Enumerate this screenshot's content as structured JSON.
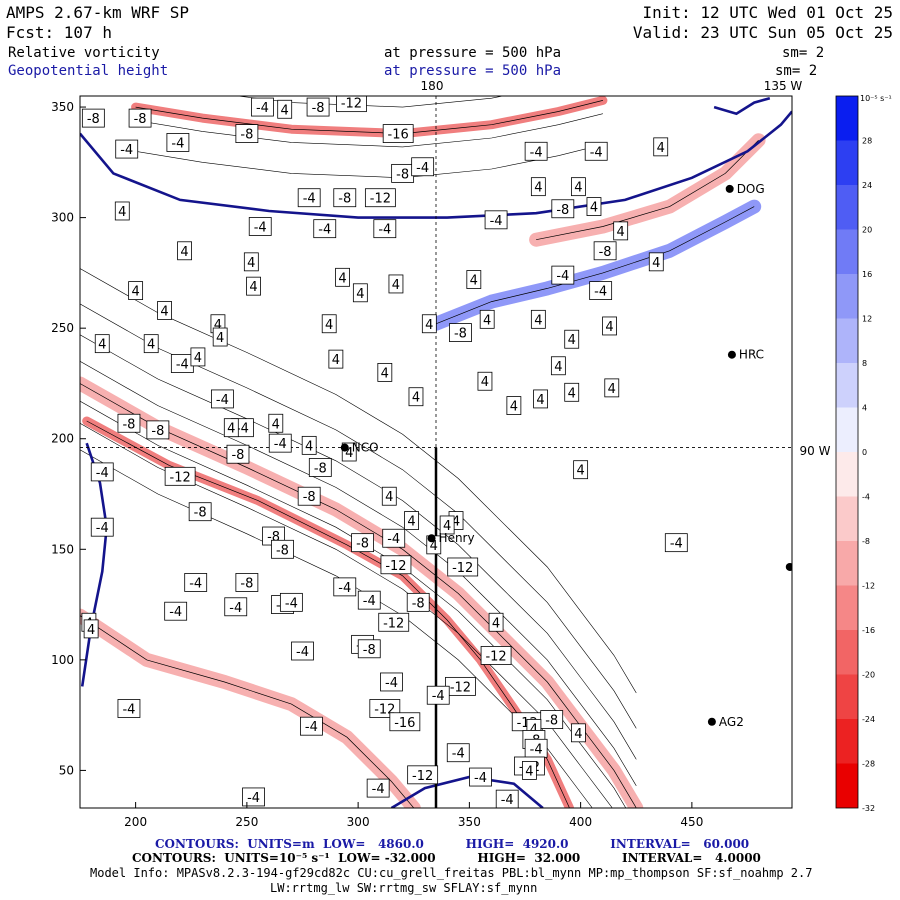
{
  "header": {
    "model": "AMPS 2.67-km WRF SP",
    "init": "Init: 12 UTC Wed 01 Oct 25",
    "fcst": "Fcst:  107 h",
    "valid": "Valid: 23 UTC Sun 05 Oct 25",
    "field1": "Relative vorticity",
    "field1_level": "at pressure =  500 hPa",
    "field1_sm": "sm= 2",
    "field2": "Geopotential height",
    "field2_level": "at pressure =  500 hPa",
    "field2_sm": "sm= 2"
  },
  "map_labels": {
    "lon_180": "180",
    "lon_135w": "135 W",
    "lat_90s": "90 W"
  },
  "stations": [
    {
      "name": "NCO",
      "x": 294,
      "y": 196
    },
    {
      "name": "Henry",
      "x": 333,
      "y": 155
    },
    {
      "name": "HRC",
      "x": 468,
      "y": 238
    },
    {
      "name": "DOG",
      "x": 467,
      "y": 313
    },
    {
      "name": "AG2",
      "x": 459,
      "y": 72
    },
    {
      "name": "",
      "x": 494,
      "y": 142
    }
  ],
  "colorbar": {
    "unit": "10⁻⁵ s⁻¹",
    "ticks": [
      "32",
      "28",
      "24",
      "20",
      "16",
      "12",
      "8",
      "4",
      "0",
      "-4",
      "-8",
      "-12",
      "-16",
      "-20",
      "-24",
      "-28",
      "-32"
    ],
    "colors": [
      "#0a1ef0",
      "#2d3ff2",
      "#4f5df4",
      "#707bf6",
      "#8f98f8",
      "#aeb4fa",
      "#cdd1fc",
      "#eceefe",
      "#fdeaea",
      "#fbcaca",
      "#f8a9a9",
      "#f58787",
      "#f26565",
      "#ef4444",
      "#ec2222",
      "#e90000"
    ]
  },
  "footer": {
    "line1_prefix": "CONTOURS:  UNITS=m  LOW=   4860.0          HIGH=  4920.0          INTERVAL=   60.000",
    "line2_prefix": "CONTOURS:  UNITS=10⁻⁵ s⁻¹  LOW= -32.000          HIGH=  32.000          INTERVAL=   4.0000",
    "line3": "Model Info: MPASv8.2.3-194-gf29cd82c CU:cu_grell_freitas PBL:bl_mynn MP:mp_thompson SF:sf_noahmp 2.7",
    "line4": "LW:rrtmg_lw SW:rrtmg_sw SFLAY:sf_mynn"
  },
  "chart_data": {
    "type": "heatmap",
    "xlim": [
      175,
      495
    ],
    "ylim": [
      33,
      355
    ],
    "x_ticks": [
      200,
      250,
      300,
      350,
      400,
      450
    ],
    "y_ticks": [
      50,
      100,
      150,
      200,
      250,
      300,
      350
    ],
    "cross_section_x": 335,
    "crosshair": {
      "x": 335,
      "y": 196
    },
    "height_contours": [
      {
        "points": [
          [
            175,
            338
          ],
          [
            190,
            320
          ],
          [
            220,
            308
          ],
          [
            260,
            303
          ],
          [
            300,
            300
          ],
          [
            340,
            300
          ],
          [
            380,
            302
          ],
          [
            420,
            308
          ],
          [
            450,
            318
          ],
          [
            475,
            330
          ],
          [
            490,
            342
          ],
          [
            495,
            348
          ]
        ]
      },
      {
        "points": [
          [
            176,
            88
          ],
          [
            180,
            115
          ],
          [
            185,
            140
          ],
          [
            187,
            160
          ],
          [
            184,
            180
          ],
          [
            178,
            198
          ]
        ]
      },
      {
        "points": [
          [
            315,
            33
          ],
          [
            330,
            42
          ],
          [
            350,
            47
          ],
          [
            370,
            44
          ],
          [
            383,
            33
          ]
        ]
      },
      {
        "points": [
          [
            460,
            350
          ],
          [
            470,
            347
          ],
          [
            478,
            352
          ],
          [
            485,
            354
          ]
        ]
      }
    ],
    "vorticity_bands": [
      {
        "value": -8,
        "points": [
          [
            175,
            225
          ],
          [
            210,
            205
          ],
          [
            250,
            187
          ],
          [
            290,
            168
          ],
          [
            320,
            150
          ],
          [
            345,
            130
          ],
          [
            365,
            110
          ],
          [
            385,
            90
          ],
          [
            400,
            70
          ],
          [
            415,
            50
          ],
          [
            425,
            33
          ]
        ]
      },
      {
        "value": -12,
        "points": [
          [
            178,
            208
          ],
          [
            215,
            188
          ],
          [
            255,
            172
          ],
          [
            295,
            152
          ],
          [
            320,
            138
          ],
          [
            340,
            118
          ],
          [
            355,
            100
          ],
          [
            370,
            78
          ],
          [
            385,
            55
          ],
          [
            395,
            33
          ]
        ]
      },
      {
        "value": -8,
        "points": [
          [
            175,
            120
          ],
          [
            205,
            100
          ],
          [
            240,
            90
          ],
          [
            270,
            80
          ],
          [
            295,
            65
          ],
          [
            315,
            45
          ],
          [
            325,
            33
          ]
        ]
      },
      {
        "value": -12,
        "points": [
          [
            200,
            350
          ],
          [
            230,
            345
          ],
          [
            270,
            340
          ],
          [
            320,
            338
          ],
          [
            360,
            342
          ],
          [
            390,
            348
          ],
          [
            410,
            353
          ]
        ]
      },
      {
        "value": -8,
        "points": [
          [
            380,
            290
          ],
          [
            410,
            296
          ],
          [
            440,
            305
          ],
          [
            465,
            320
          ],
          [
            480,
            335
          ]
        ]
      },
      {
        "value": 8,
        "points": [
          [
            335,
            252
          ],
          [
            360,
            262
          ],
          [
            385,
            268
          ],
          [
            410,
            275
          ],
          [
            440,
            285
          ],
          [
            465,
            298
          ],
          [
            478,
            305
          ]
        ]
      }
    ],
    "contour_labels": [
      {
        "t": "-8",
        "x": 181,
        "y": 345
      },
      {
        "t": "-8",
        "x": 202,
        "y": 345
      },
      {
        "t": "-4",
        "x": 196,
        "y": 331
      },
      {
        "t": "-4",
        "x": 219,
        "y": 334
      },
      {
        "t": "-8",
        "x": 250,
        "y": 338
      },
      {
        "t": "-4",
        "x": 257,
        "y": 350
      },
      {
        "t": "4",
        "x": 267,
        "y": 349
      },
      {
        "t": "-8",
        "x": 282,
        "y": 350
      },
      {
        "t": "-12",
        "x": 297,
        "y": 352
      },
      {
        "t": "-16",
        "x": 318,
        "y": 338
      },
      {
        "t": "-8",
        "x": 320,
        "y": 320
      },
      {
        "t": "-4",
        "x": 329,
        "y": 323
      },
      {
        "t": "-8",
        "x": 294,
        "y": 309
      },
      {
        "t": "-12",
        "x": 310,
        "y": 309
      },
      {
        "t": "-4",
        "x": 278,
        "y": 309
      },
      {
        "t": "4",
        "x": 194,
        "y": 303
      },
      {
        "t": "-4",
        "x": 256,
        "y": 296
      },
      {
        "t": "-4",
        "x": 285,
        "y": 295
      },
      {
        "t": "-4",
        "x": 312,
        "y": 295
      },
      {
        "t": "-4",
        "x": 362,
        "y": 299
      },
      {
        "t": "-4",
        "x": 407,
        "y": 330
      },
      {
        "t": "4",
        "x": 381,
        "y": 314
      },
      {
        "t": "-4",
        "x": 380,
        "y": 330
      },
      {
        "t": "4",
        "x": 436,
        "y": 332
      },
      {
        "t": "4",
        "x": 406,
        "y": 305
      },
      {
        "t": "-8",
        "x": 392,
        "y": 304
      },
      {
        "t": "4",
        "x": 399,
        "y": 314
      },
      {
        "t": "4",
        "x": 418,
        "y": 294
      },
      {
        "t": "-8",
        "x": 411,
        "y": 285
      },
      {
        "t": "4",
        "x": 434,
        "y": 280
      },
      {
        "t": "-4",
        "x": 392,
        "y": 274
      },
      {
        "t": "-4",
        "x": 409,
        "y": 267
      },
      {
        "t": "4",
        "x": 222,
        "y": 285
      },
      {
        "t": "4",
        "x": 253,
        "y": 269
      },
      {
        "t": "4",
        "x": 252,
        "y": 280
      },
      {
        "t": "4",
        "x": 200,
        "y": 267
      },
      {
        "t": "4",
        "x": 293,
        "y": 273
      },
      {
        "t": "4",
        "x": 317,
        "y": 270
      },
      {
        "t": "4",
        "x": 301,
        "y": 266
      },
      {
        "t": "4",
        "x": 352,
        "y": 272
      },
      {
        "t": "4",
        "x": 213,
        "y": 258
      },
      {
        "t": "4",
        "x": 237,
        "y": 252
      },
      {
        "t": "4",
        "x": 332,
        "y": 252
      },
      {
        "t": "-8",
        "x": 346,
        "y": 248
      },
      {
        "t": "4",
        "x": 358,
        "y": 254
      },
      {
        "t": "4",
        "x": 287,
        "y": 252
      },
      {
        "t": "4",
        "x": 238,
        "y": 246
      },
      {
        "t": "4",
        "x": 185,
        "y": 243
      },
      {
        "t": "4",
        "x": 207,
        "y": 243
      },
      {
        "t": "4",
        "x": 381,
        "y": 254
      },
      {
        "t": "4",
        "x": 396,
        "y": 245
      },
      {
        "t": "4",
        "x": 413,
        "y": 251
      },
      {
        "t": "4",
        "x": 390,
        "y": 233
      },
      {
        "t": "-4",
        "x": 221,
        "y": 234
      },
      {
        "t": "4",
        "x": 228,
        "y": 237
      },
      {
        "t": "-4",
        "x": 239,
        "y": 218
      },
      {
        "t": "4",
        "x": 290,
        "y": 236
      },
      {
        "t": "4",
        "x": 312,
        "y": 230
      },
      {
        "t": "4",
        "x": 357,
        "y": 226
      },
      {
        "t": "4",
        "x": 326,
        "y": 219
      },
      {
        "t": "4",
        "x": 370,
        "y": 215
      },
      {
        "t": "4",
        "x": 382,
        "y": 218
      },
      {
        "t": "4",
        "x": 414,
        "y": 223
      },
      {
        "t": "-4",
        "x": 248,
        "y": 205
      },
      {
        "t": "4",
        "x": 243,
        "y": 205
      },
      {
        "t": "-4",
        "x": 265,
        "y": 198
      },
      {
        "t": "4",
        "x": 278,
        "y": 197
      },
      {
        "t": "4",
        "x": 296,
        "y": 194
      },
      {
        "t": "-8",
        "x": 197,
        "y": 207
      },
      {
        "t": "-8",
        "x": 210,
        "y": 204
      },
      {
        "t": "-8",
        "x": 246,
        "y": 193
      },
      {
        "t": "-8",
        "x": 283,
        "y": 187
      },
      {
        "t": "4",
        "x": 396,
        "y": 221
      },
      {
        "t": "4",
        "x": 263,
        "y": 207
      },
      {
        "t": "-4",
        "x": 185,
        "y": 185
      },
      {
        "t": "-12",
        "x": 220,
        "y": 183
      },
      {
        "t": "-8",
        "x": 278,
        "y": 174
      },
      {
        "t": "-8",
        "x": 229,
        "y": 167
      },
      {
        "t": "4",
        "x": 314,
        "y": 174
      },
      {
        "t": "4",
        "x": 324,
        "y": 163
      },
      {
        "t": "4",
        "x": 344,
        "y": 163
      },
      {
        "t": "4",
        "x": 340,
        "y": 161
      },
      {
        "t": "-8",
        "x": 262,
        "y": 156
      },
      {
        "t": "-8",
        "x": 266,
        "y": 150
      },
      {
        "t": "-8",
        "x": 302,
        "y": 153
      },
      {
        "t": "-4",
        "x": 316,
        "y": 155
      },
      {
        "t": "4",
        "x": 334,
        "y": 152
      },
      {
        "t": "-12",
        "x": 347,
        "y": 142
      },
      {
        "t": "4",
        "x": 400,
        "y": 186
      },
      {
        "t": "-4",
        "x": 443,
        "y": 153
      },
      {
        "t": "-12",
        "x": 317,
        "y": 143
      },
      {
        "t": "-4",
        "x": 185,
        "y": 160
      },
      {
        "t": "-4",
        "x": 227,
        "y": 135
      },
      {
        "t": "-4",
        "x": 245,
        "y": 124
      },
      {
        "t": "-8",
        "x": 250,
        "y": 135
      },
      {
        "t": "-8",
        "x": 266,
        "y": 125
      },
      {
        "t": "-4",
        "x": 270,
        "y": 126
      },
      {
        "t": "-4",
        "x": 294,
        "y": 133
      },
      {
        "t": "-4",
        "x": 305,
        "y": 127
      },
      {
        "t": "-12",
        "x": 316,
        "y": 117
      },
      {
        "t": "-8",
        "x": 327,
        "y": 126
      },
      {
        "t": "4",
        "x": 362,
        "y": 117
      },
      {
        "t": "-4",
        "x": 218,
        "y": 122
      },
      {
        "t": "4",
        "x": 179,
        "y": 117
      },
      {
        "t": "4",
        "x": 180,
        "y": 114
      },
      {
        "t": "-4",
        "x": 275,
        "y": 104
      },
      {
        "t": "-8",
        "x": 302,
        "y": 107
      },
      {
        "t": "-8",
        "x": 305,
        "y": 105
      },
      {
        "t": "-12",
        "x": 346,
        "y": 88
      },
      {
        "t": "-12",
        "x": 362,
        "y": 102
      },
      {
        "t": "-4",
        "x": 336,
        "y": 84
      },
      {
        "t": "-4",
        "x": 315,
        "y": 90
      },
      {
        "t": "-12",
        "x": 312,
        "y": 78
      },
      {
        "t": "-12",
        "x": 376,
        "y": 72
      },
      {
        "t": "-8",
        "x": 387,
        "y": 73
      },
      {
        "t": "4",
        "x": 379,
        "y": 69
      },
      {
        "t": "-16",
        "x": 321,
        "y": 72
      },
      {
        "t": "-4",
        "x": 197,
        "y": 78
      },
      {
        "t": "-4",
        "x": 279,
        "y": 70
      },
      {
        "t": "4",
        "x": 399,
        "y": 67
      },
      {
        "t": "-4",
        "x": 345,
        "y": 58
      },
      {
        "t": "-8",
        "x": 379,
        "y": 64
      },
      {
        "t": "-4",
        "x": 380,
        "y": 60
      },
      {
        "t": "-12",
        "x": 377,
        "y": 52
      },
      {
        "t": "4",
        "x": 377,
        "y": 50
      },
      {
        "t": "-12",
        "x": 329,
        "y": 48
      },
      {
        "t": "-4",
        "x": 309,
        "y": 42
      },
      {
        "t": "-4",
        "x": 253,
        "y": 38
      },
      {
        "t": "-4",
        "x": 355,
        "y": 47
      },
      {
        "t": "-4",
        "x": 367,
        "y": 37
      }
    ]
  }
}
